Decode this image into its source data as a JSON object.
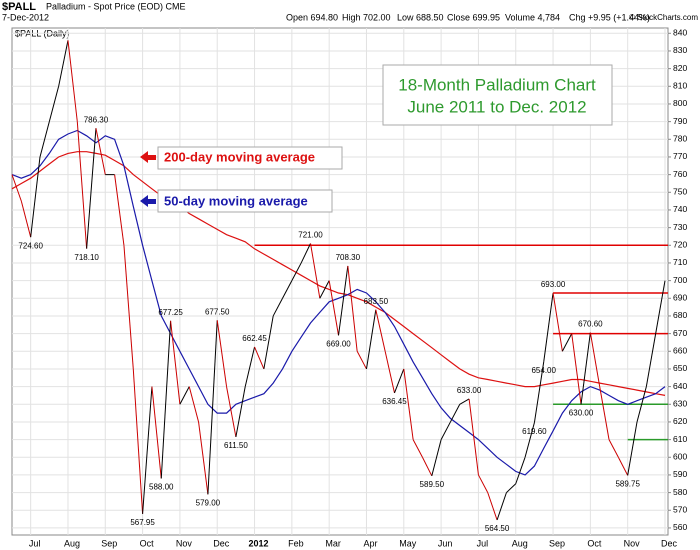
{
  "chart_data": {
    "type": "line",
    "symbol": "$PALL",
    "title": "Palladium - Spot Price (EOD) CME",
    "date": "7-Dec-2012",
    "stats": [
      "Open 694.80",
      "High 702.00",
      "Low 688.50",
      "Close 699.95",
      "Volume 4,784",
      "Chg +9.95 (+1.44%)"
    ],
    "copyright": "© StockCharts.com",
    "annotation": [
      "18-Month Palladium Chart",
      "June 2011 to Dec. 2012"
    ],
    "annotation_color": "#2e9a2e",
    "categories": [
      null,
      null,
      "Jul",
      null,
      null,
      null,
      "Aug",
      null,
      null,
      null,
      "Sep",
      null,
      null,
      null,
      "Oct",
      null,
      null,
      null,
      "Nov",
      null,
      null,
      null,
      "Dec",
      null,
      null,
      null,
      "2012",
      null,
      null,
      null,
      "Feb",
      null,
      null,
      null,
      "Mar",
      null,
      null,
      null,
      "Apr",
      null,
      null,
      null,
      "May",
      null,
      null,
      null,
      "Jun",
      null,
      null,
      null,
      "Jul",
      null,
      null,
      null,
      "Aug",
      null,
      null,
      null,
      "Sep",
      null,
      null,
      null,
      "Oct",
      null,
      null,
      null,
      "Nov",
      null,
      null,
      null,
      "Dec"
    ],
    "series": [
      {
        "name": "$PALL (Daily)",
        "color": "#000000",
        "down_color": "#cc0000",
        "values": [
          760,
          745,
          724.6,
          770,
          790,
          810,
          836,
          790,
          718.1,
          786.3,
          760,
          760,
          720,
          650,
          567.95,
          640,
          588,
          677.25,
          630,
          640,
          620,
          579,
          677.5,
          640,
          611.5,
          640,
          662.45,
          650,
          680,
          690,
          700,
          710,
          721,
          690,
          700,
          669,
          708.3,
          660,
          650,
          683.5,
          660,
          636.45,
          650,
          610,
          600,
          589.5,
          610,
          620,
          630,
          633,
          590,
          580,
          564.5,
          580,
          585,
          600,
          619.6,
          654,
          693,
          660,
          670,
          630,
          670.6,
          640,
          610,
          600,
          589.75,
          620,
          640,
          670,
          699.95
        ],
        "value_labels": [
          null,
          null,
          "724.60",
          null,
          null,
          null,
          null,
          null,
          "718.10",
          "786.30",
          null,
          null,
          null,
          null,
          "567.95",
          null,
          "588.00",
          "677.25",
          null,
          null,
          null,
          "579.00",
          "677.50",
          null,
          "611.50",
          null,
          "662.45",
          null,
          null,
          null,
          null,
          null,
          "721.00",
          null,
          null,
          "669.00",
          "708.30",
          null,
          null,
          "683.50",
          null,
          "636.45",
          null,
          null,
          null,
          "589.50",
          null,
          null,
          null,
          "633.00",
          null,
          null,
          "564.50",
          null,
          null,
          null,
          "619.60",
          "654.00",
          "693.00",
          null,
          null,
          "630.00",
          "670.60",
          null,
          null,
          null,
          "589.75",
          null,
          null,
          null,
          null
        ]
      },
      {
        "name": "50-day moving average",
        "color": "#1a1aaa",
        "values": [
          760,
          758,
          760,
          765,
          772,
          780,
          783,
          785,
          782,
          778,
          782,
          780,
          765,
          742,
          720,
          700,
          680,
          670,
          660,
          650,
          640,
          630,
          625,
          625,
          630,
          632,
          634,
          636,
          642,
          650,
          660,
          668,
          676,
          682,
          688,
          690,
          692,
          695,
          693,
          688,
          682,
          674,
          664,
          654,
          645,
          636,
          628,
          622,
          618,
          614,
          610,
          605,
          600,
          596,
          592,
          590,
          595,
          605,
          615,
          625,
          632,
          637,
          640,
          638,
          635,
          632,
          630,
          632,
          634,
          636,
          640
        ]
      },
      {
        "name": "200-day moving average",
        "color": "#dd1111",
        "values": [
          752,
          755,
          758,
          762,
          766,
          770,
          772,
          773,
          773,
          772,
          771,
          768,
          765,
          760,
          756,
          752,
          748,
          745,
          742,
          738,
          735,
          732,
          729,
          726,
          724,
          722,
          718,
          715,
          712,
          709,
          706,
          703,
          700,
          697,
          695,
          693,
          692,
          690,
          688,
          685,
          682,
          678,
          674,
          670,
          666,
          662,
          658,
          654,
          650,
          647,
          645,
          644,
          643,
          642,
          641,
          640,
          640,
          641,
          642,
          643,
          644,
          644,
          643,
          642,
          641,
          640,
          639,
          638,
          637,
          636,
          635
        ]
      }
    ],
    "hlines": [
      {
        "value": 720,
        "color": "#e00000"
      },
      {
        "value": 693,
        "color": "#e00000"
      },
      {
        "value": 670,
        "color": "#e00000"
      },
      {
        "value": 630,
        "color": "#2a9a2a"
      },
      {
        "value": 610,
        "color": "#2a9a2a"
      }
    ],
    "ylim": [
      556,
      843
    ],
    "yticks": [
      560,
      570,
      580,
      590,
      600,
      610,
      620,
      630,
      640,
      650,
      660,
      670,
      680,
      690,
      700,
      710,
      720,
      730,
      740,
      750,
      760,
      770,
      780,
      790,
      800,
      810,
      820,
      830,
      840
    ],
    "grid": true
  }
}
